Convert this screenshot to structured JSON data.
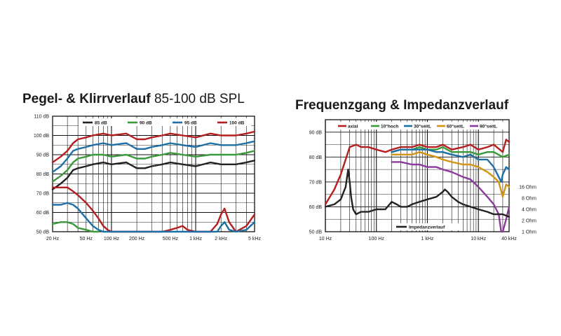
{
  "titles": {
    "left_bold": "Pegel- & Klirrverlauf",
    "left_regular": " 85-100 dB SPL",
    "right": "Frequenzgang & Impedanzverlauf"
  },
  "colors": {
    "black": "#222222",
    "green": "#3a9a3a",
    "blue": "#1d6fa5",
    "red": "#b51e1e",
    "orange": "#d39413",
    "purple": "#8a3a9a"
  },
  "chart_data": [
    {
      "type": "line",
      "title": "Pegel- & Klirrverlauf 85-100 dB SPL",
      "x_scale": "log",
      "xlim": [
        20,
        5000
      ],
      "ylim": [
        50,
        110
      ],
      "grid": true,
      "legend_position": "top",
      "y_ticks": [
        "110 dB",
        "100 dB",
        "90 dB",
        "80 dB",
        "70 dB",
        "60 dB",
        "50 dB"
      ],
      "x_ticks": [
        {
          "label": "20 Hz",
          "value": 20
        },
        {
          "label": "50 Hz",
          "value": 50
        },
        {
          "label": "100 Hz",
          "value": 100
        },
        {
          "label": "200 Hz",
          "value": 200
        },
        {
          "label": "500 Hz",
          "value": 500
        },
        {
          "label": "1 kHz",
          "value": 1000
        },
        {
          "label": "2 kHz",
          "value": 2000
        },
        {
          "label": "5 kHz",
          "value": 5000
        }
      ],
      "series": [
        {
          "name": "85 dB",
          "color": "#222222",
          "x": [
            20,
            25,
            30,
            35,
            40,
            50,
            60,
            80,
            100,
            150,
            200,
            250,
            300,
            400,
            500,
            700,
            1000,
            1500,
            2000,
            3000,
            4000,
            5000
          ],
          "y": [
            72,
            75,
            78,
            82,
            83,
            84,
            85,
            86,
            85,
            86,
            83,
            83,
            84,
            85,
            86,
            85,
            84,
            86,
            85,
            85,
            86,
            87
          ]
        },
        {
          "name": "90 dB",
          "color": "#3a9a3a",
          "x": [
            20,
            25,
            30,
            35,
            40,
            50,
            60,
            80,
            100,
            150,
            200,
            250,
            300,
            400,
            500,
            700,
            1000,
            1500,
            2000,
            3000,
            4000,
            5000
          ],
          "y": [
            76,
            79,
            82,
            86,
            88,
            89,
            90,
            90,
            89,
            90,
            88,
            88,
            89,
            90,
            91,
            90,
            89,
            90,
            90,
            90,
            91,
            92
          ]
        },
        {
          "name": "95 dB",
          "color": "#1d6fa5",
          "x": [
            20,
            25,
            30,
            35,
            40,
            50,
            60,
            80,
            100,
            150,
            200,
            250,
            300,
            400,
            500,
            700,
            1000,
            1500,
            2000,
            3000,
            4000,
            5000
          ],
          "y": [
            81,
            84,
            88,
            92,
            93,
            94,
            95,
            96,
            95,
            96,
            93,
            93,
            94,
            95,
            96,
            95,
            94,
            96,
            95,
            95,
            96,
            97
          ]
        },
        {
          "name": "100 dB",
          "color": "#b51e1e",
          "x": [
            20,
            25,
            30,
            35,
            40,
            50,
            60,
            80,
            100,
            150,
            200,
            250,
            300,
            400,
            500,
            700,
            1000,
            1500,
            2000,
            3000,
            4000,
            5000
          ],
          "y": [
            86,
            89,
            92,
            96,
            98,
            99,
            100,
            101,
            100,
            101,
            98,
            98,
            99,
            100,
            101,
            100,
            99,
            101,
            100,
            100,
            101,
            102
          ]
        },
        {
          "name": "",
          "color": "#b51e1e",
          "x": [
            20,
            25,
            30,
            35,
            40,
            50,
            60,
            70,
            80,
            90,
            100,
            120,
            150,
            200,
            300,
            400,
            500,
            600,
            700,
            800,
            1000,
            1200,
            1500,
            1800,
            2000,
            2200,
            2500,
            3000,
            4000,
            5000
          ],
          "y": [
            73,
            73,
            73,
            71,
            69,
            65,
            61,
            57,
            53,
            51,
            50,
            50,
            50,
            50,
            50,
            50,
            51,
            52,
            53,
            51,
            50,
            50,
            50,
            54,
            59,
            62,
            55,
            50,
            53,
            59
          ]
        },
        {
          "name": "",
          "color": "#1d6fa5",
          "x": [
            20,
            25,
            30,
            35,
            40,
            50,
            60,
            70,
            80,
            1800,
            2000,
            2200,
            2500,
            3000,
            4000,
            5000
          ],
          "y": [
            64,
            64,
            65,
            64,
            62,
            57,
            53,
            51,
            50,
            50,
            53,
            55,
            51,
            50,
            51,
            55
          ]
        },
        {
          "name": "",
          "color": "#3a9a3a",
          "x": [
            20,
            25,
            30,
            35,
            40,
            50,
            60,
            70
          ],
          "y": [
            54,
            55,
            55,
            54,
            52,
            51,
            50,
            50
          ]
        }
      ]
    },
    {
      "type": "line",
      "title": "Frequenzgang & Impedanzverlauf",
      "x_scale": "log",
      "xlim": [
        10,
        40000
      ],
      "ylim": [
        50,
        95
      ],
      "grid": true,
      "legend_position": "top",
      "y_ticks": [
        "90 dB",
        "80 dB",
        "70 dB",
        "60 dB",
        "50 dB"
      ],
      "x_ticks": [
        {
          "label": "10 Hz",
          "value": 10
        },
        {
          "label": "100 Hz",
          "value": 100
        },
        {
          "label": "1 kHz",
          "value": 1000
        },
        {
          "label": "10 kHz",
          "value": 10000
        },
        {
          "label": "40 kHz",
          "value": 40000
        }
      ],
      "impedance_axis": [
        "16 Ohm",
        "8 Ohm",
        "4 Ohm",
        "2 Ohm",
        "1 Ohm"
      ],
      "impedance_legend": "Impedanzverlauf",
      "series": [
        {
          "name": "axial",
          "color": "#b51e1e",
          "x": [
            10,
            15,
            20,
            25,
            30,
            40,
            50,
            70,
            100,
            150,
            200,
            300,
            500,
            700,
            1000,
            1500,
            2000,
            3000,
            5000,
            7000,
            10000,
            15000,
            20000,
            30000,
            35000,
            40000
          ],
          "y": [
            61,
            67,
            73,
            79,
            84,
            85,
            84,
            84,
            83,
            82,
            83,
            84,
            84,
            85,
            84,
            84,
            85,
            83,
            84,
            85,
            83,
            84,
            85,
            82,
            87,
            86
          ]
        },
        {
          "name": "10°hoch",
          "color": "#3a9a3a",
          "x": [
            200,
            300,
            500,
            700,
            1000,
            1500,
            2000,
            3000,
            5000,
            7000,
            10000,
            15000,
            20000,
            30000,
            40000
          ],
          "y": [
            82,
            83,
            83,
            84,
            83,
            83,
            84,
            82,
            82,
            82,
            81,
            82,
            82,
            80,
            81
          ]
        },
        {
          "name": "30°seitL",
          "color": "#1d6fa5",
          "x": [
            200,
            300,
            500,
            700,
            1000,
            1500,
            2000,
            3000,
            5000,
            7000,
            10000,
            15000,
            20000,
            25000,
            28000,
            30000,
            35000,
            40000
          ],
          "y": [
            82,
            83,
            83,
            83,
            83,
            82,
            82,
            81,
            80,
            81,
            79,
            79,
            76,
            72,
            70,
            73,
            76,
            75
          ]
        },
        {
          "name": "60°seitL",
          "color": "#d39413",
          "x": [
            200,
            300,
            500,
            700,
            1000,
            1500,
            2000,
            3000,
            5000,
            7000,
            10000,
            15000,
            20000,
            25000,
            30000,
            35000,
            40000
          ],
          "y": [
            81,
            81,
            81,
            82,
            81,
            80,
            79,
            78,
            77,
            77,
            76,
            74,
            72,
            70,
            64,
            69,
            68
          ]
        },
        {
          "name": "90°seitL",
          "color": "#8a3a9a",
          "x": [
            200,
            300,
            500,
            700,
            1000,
            1500,
            2000,
            3000,
            5000,
            7000,
            10000,
            15000,
            20000,
            25000,
            28000,
            30000,
            35000,
            40000
          ],
          "y": [
            78,
            78,
            77,
            77,
            76,
            76,
            75,
            74,
            72,
            71,
            68,
            64,
            61,
            57,
            50,
            50,
            55,
            60
          ]
        },
        {
          "name": "Impedanzverlauf",
          "color": "#222222",
          "x": [
            10,
            15,
            20,
            25,
            28,
            30,
            32,
            35,
            40,
            50,
            70,
            100,
            150,
            200,
            250,
            300,
            400,
            500,
            700,
            1000,
            1500,
            2000,
            2200,
            2500,
            3000,
            4000,
            5000,
            7000,
            10000,
            15000,
            20000,
            30000,
            40000
          ],
          "y": [
            60,
            61,
            63,
            68,
            75,
            70,
            64,
            59,
            57,
            58,
            58,
            59,
            59,
            62,
            61,
            60,
            60,
            61,
            62,
            63,
            64,
            66,
            67,
            66,
            64,
            62,
            61,
            60,
            59,
            58,
            57,
            57,
            56
          ]
        }
      ]
    }
  ]
}
